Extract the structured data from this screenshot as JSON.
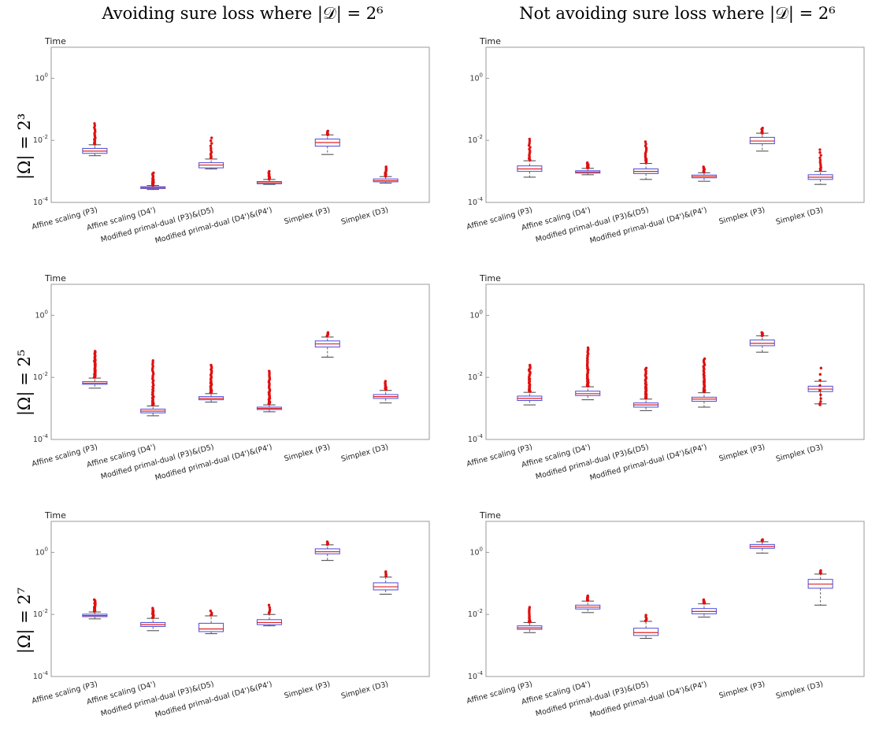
{
  "figure": {
    "column_titles": [
      "Avoiding sure loss where |𝒟| = 2⁶",
      "Not avoiding sure loss where |𝒟| = 2⁶"
    ],
    "row_labels": [
      "|Ω| = 2³",
      "|Ω| = 2⁵",
      "|Ω| = 2⁷"
    ]
  },
  "colors": {
    "box": "#4a4ad8",
    "median": "#e02020",
    "outlier": "#e01010",
    "whisker": "#666666"
  },
  "chart_data": [
    {
      "type": "box",
      "panel": "avoiding-omega-2^3",
      "ylabel": "Time",
      "yscale": "log",
      "ylim_exp": [
        -4,
        1
      ],
      "yticks": [
        {
          "base": "10",
          "exp": "0"
        },
        {
          "base": "10",
          "exp": "-2"
        },
        {
          "base": "10",
          "exp": "-4"
        }
      ],
      "categories": [
        "Affine scaling (P3)",
        "Affine scaling (D4')",
        "Modified primal-dual (P3)&(D5)",
        "Modified primal-dual (D4')&(P4')",
        "Simplex (P3)",
        "Simplex (D3)"
      ],
      "boxes": [
        {
          "min": 0.0032,
          "q1": 0.0038,
          "median": 0.0045,
          "q3": 0.0055,
          "max": 0.0072,
          "outliers_range": [
            0.0075,
            0.035
          ],
          "outliers_count": 16
        },
        {
          "min": 0.00026,
          "q1": 0.00028,
          "median": 0.0003,
          "q3": 0.00032,
          "max": 0.00035,
          "outliers_range": [
            0.00036,
            0.0009
          ],
          "outliers_count": 18
        },
        {
          "min": 0.0012,
          "q1": 0.0013,
          "median": 0.0016,
          "q3": 0.0019,
          "max": 0.0025,
          "outliers_range": [
            0.0027,
            0.012
          ],
          "outliers_count": 12
        },
        {
          "min": 0.00038,
          "q1": 0.0004,
          "median": 0.00043,
          "q3": 0.00047,
          "max": 0.00055,
          "outliers_range": [
            0.00056,
            0.001
          ],
          "outliers_count": 12
        },
        {
          "min": 0.0035,
          "q1": 0.0065,
          "median": 0.0085,
          "q3": 0.011,
          "max": 0.015,
          "outliers_range": [
            0.015,
            0.02
          ],
          "outliers_count": 8
        },
        {
          "min": 0.00042,
          "q1": 0.00046,
          "median": 0.0005,
          "q3": 0.00057,
          "max": 0.00068,
          "outliers_range": [
            0.0007,
            0.0014
          ],
          "outliers_count": 12
        }
      ]
    },
    {
      "type": "box",
      "panel": "not-avoiding-omega-2^3",
      "ylabel": "Time",
      "yscale": "log",
      "ylim_exp": [
        -4,
        1
      ],
      "yticks": [
        {
          "base": "10",
          "exp": "0"
        },
        {
          "base": "10",
          "exp": "-2"
        },
        {
          "base": "10",
          "exp": "-4"
        }
      ],
      "categories": [
        "Affine scaling (P3)",
        "Affine scaling (D4')",
        "Modified primal-dual (P3)&(D5)",
        "Modified primal-dual (D4')&(P4')",
        "Simplex (P3)",
        "Simplex (D3)"
      ],
      "boxes": [
        {
          "min": 0.00065,
          "q1": 0.001,
          "median": 0.0012,
          "q3": 0.0015,
          "max": 0.0022,
          "outliers_range": [
            0.0023,
            0.011
          ],
          "outliers_count": 16
        },
        {
          "min": 0.00078,
          "q1": 0.00088,
          "median": 0.00095,
          "q3": 0.00105,
          "max": 0.00125,
          "outliers_range": [
            0.0013,
            0.0019
          ],
          "outliers_count": 12
        },
        {
          "min": 0.00055,
          "q1": 0.00085,
          "median": 0.001,
          "q3": 0.0012,
          "max": 0.0018,
          "outliers_range": [
            0.0019,
            0.009
          ],
          "outliers_count": 16
        },
        {
          "min": 0.00048,
          "q1": 0.00062,
          "median": 0.00068,
          "q3": 0.00076,
          "max": 0.0009,
          "outliers_range": [
            0.00095,
            0.0014
          ],
          "outliers_count": 10
        },
        {
          "min": 0.0045,
          "q1": 0.0078,
          "median": 0.0095,
          "q3": 0.0125,
          "max": 0.017,
          "outliers_range": [
            0.017,
            0.025
          ],
          "outliers_count": 8
        },
        {
          "min": 0.00038,
          "q1": 0.00055,
          "median": 0.00065,
          "q3": 0.00078,
          "max": 0.001,
          "outliers_range": [
            0.0011,
            0.005
          ],
          "outliers_count": 12
        }
      ]
    },
    {
      "type": "box",
      "panel": "avoiding-omega-2^5",
      "ylabel": "Time",
      "yscale": "log",
      "ylim_exp": [
        -4,
        1
      ],
      "yticks": [
        {
          "base": "10",
          "exp": "0"
        },
        {
          "base": "10",
          "exp": "-2"
        },
        {
          "base": "10",
          "exp": "-4"
        }
      ],
      "categories": [
        "Affine scaling (P3)",
        "Affine scaling (D4')",
        "Modified primal-dual (P3)&(D5)",
        "Modified primal-dual (D4')&(P4')",
        "Simplex (P3)",
        "Simplex (D3)"
      ],
      "boxes": [
        {
          "min": 0.0045,
          "q1": 0.006,
          "median": 0.0065,
          "q3": 0.0073,
          "max": 0.0095,
          "outliers_range": [
            0.01,
            0.07
          ],
          "outliers_count": 40
        },
        {
          "min": 0.00058,
          "q1": 0.00072,
          "median": 0.00082,
          "q3": 0.00095,
          "max": 0.0012,
          "outliers_range": [
            0.0013,
            0.035
          ],
          "outliers_count": 36
        },
        {
          "min": 0.0016,
          "q1": 0.0019,
          "median": 0.0021,
          "q3": 0.0024,
          "max": 0.003,
          "outliers_range": [
            0.0032,
            0.025
          ],
          "outliers_count": 30
        },
        {
          "min": 0.00078,
          "q1": 0.00092,
          "median": 0.001,
          "q3": 0.0011,
          "max": 0.0013,
          "outliers_range": [
            0.0014,
            0.016
          ],
          "outliers_count": 32
        },
        {
          "min": 0.045,
          "q1": 0.095,
          "median": 0.12,
          "q3": 0.15,
          "max": 0.2,
          "outliers_range": [
            0.21,
            0.28
          ],
          "outliers_count": 6
        },
        {
          "min": 0.0015,
          "q1": 0.0021,
          "median": 0.0024,
          "q3": 0.0028,
          "max": 0.0038,
          "outliers_range": [
            0.004,
            0.0075
          ],
          "outliers_count": 10
        }
      ]
    },
    {
      "type": "box",
      "panel": "not-avoiding-omega-2^5",
      "ylabel": "Time",
      "yscale": "log",
      "ylim_exp": [
        -4,
        1
      ],
      "yticks": [
        {
          "base": "10",
          "exp": "0"
        },
        {
          "base": "10",
          "exp": "-2"
        },
        {
          "base": "10",
          "exp": "-4"
        }
      ],
      "categories": [
        "Affine scaling (P3)",
        "Affine scaling (D4')",
        "Modified primal-dual (P3)&(D5)",
        "Modified primal-dual (D4')&(P4')",
        "Simplex (P3)",
        "Simplex (D3)"
      ],
      "boxes": [
        {
          "min": 0.0013,
          "q1": 0.0018,
          "median": 0.0021,
          "q3": 0.0025,
          "max": 0.0033,
          "outliers_range": [
            0.0035,
            0.025
          ],
          "outliers_count": 36
        },
        {
          "min": 0.0019,
          "q1": 0.0026,
          "median": 0.003,
          "q3": 0.0036,
          "max": 0.005,
          "outliers_range": [
            0.0052,
            0.09
          ],
          "outliers_count": 40
        },
        {
          "min": 0.00085,
          "q1": 0.0011,
          "median": 0.0013,
          "q3": 0.0015,
          "max": 0.002,
          "outliers_range": [
            0.0021,
            0.02
          ],
          "outliers_count": 34
        },
        {
          "min": 0.0011,
          "q1": 0.0017,
          "median": 0.002,
          "q3": 0.0023,
          "max": 0.0032,
          "outliers_range": [
            0.0034,
            0.04
          ],
          "outliers_count": 34
        },
        {
          "min": 0.065,
          "q1": 0.105,
          "median": 0.125,
          "q3": 0.16,
          "max": 0.22,
          "outliers_range": [
            0.22,
            0.28
          ],
          "outliers_count": 6
        },
        {
          "min": 0.0014,
          "q1": 0.0035,
          "median": 0.0042,
          "q3": 0.0052,
          "max": 0.0075,
          "outliers_range": [
            0.0013,
            0.02
          ],
          "outliers_count": 10
        }
      ]
    },
    {
      "type": "box",
      "panel": "avoiding-omega-2^7",
      "ylabel": "Time",
      "yscale": "log",
      "ylim_exp": [
        -4,
        1
      ],
      "yticks": [
        {
          "base": "10",
          "exp": "0"
        },
        {
          "base": "10",
          "exp": "-2"
        },
        {
          "base": "10",
          "exp": "-4"
        }
      ],
      "categories": [
        "Affine scaling (P3)",
        "Affine scaling (D4')",
        "Modified primal-dual (P3)&(D5)",
        "Modified primal-dual (D4')&(P4')",
        "Simplex (P3)",
        "Simplex (D3)"
      ],
      "boxes": [
        {
          "min": 0.0072,
          "q1": 0.0085,
          "median": 0.0092,
          "q3": 0.0102,
          "max": 0.012,
          "outliers_range": [
            0.0125,
            0.03
          ],
          "outliers_count": 20
        },
        {
          "min": 0.003,
          "q1": 0.0041,
          "median": 0.0047,
          "q3": 0.0055,
          "max": 0.0075,
          "outliers_range": [
            0.0078,
            0.016
          ],
          "outliers_count": 16
        },
        {
          "min": 0.0024,
          "q1": 0.0028,
          "median": 0.0034,
          "q3": 0.0052,
          "max": 0.009,
          "outliers_range": [
            0.0095,
            0.013
          ],
          "outliers_count": 4
        },
        {
          "min": 0.0043,
          "q1": 0.0047,
          "median": 0.0055,
          "q3": 0.0068,
          "max": 0.01,
          "outliers_range": [
            0.011,
            0.02
          ],
          "outliers_count": 6
        },
        {
          "min": 0.55,
          "q1": 0.9,
          "median": 1.05,
          "q3": 1.3,
          "max": 1.75,
          "outliers_range": [
            1.8,
            2.2
          ],
          "outliers_count": 6
        },
        {
          "min": 0.045,
          "q1": 0.062,
          "median": 0.078,
          "q3": 0.105,
          "max": 0.16,
          "outliers_range": [
            0.17,
            0.24
          ],
          "outliers_count": 6
        }
      ]
    },
    {
      "type": "box",
      "panel": "not-avoiding-omega-2^7",
      "ylabel": "Time",
      "yscale": "log",
      "ylim_exp": [
        -4,
        1
      ],
      "yticks": [
        {
          "base": "10",
          "exp": "0"
        },
        {
          "base": "10",
          "exp": "-2"
        },
        {
          "base": "10",
          "exp": "-4"
        }
      ],
      "categories": [
        "Affine scaling (P3)",
        "Affine scaling (D4')",
        "Modified primal-dual (P3)&(D5)",
        "Modified primal-dual (D4')&(P4')",
        "Simplex (P3)",
        "Simplex (D3)"
      ],
      "boxes": [
        {
          "min": 0.0026,
          "q1": 0.0033,
          "median": 0.0037,
          "q3": 0.0043,
          "max": 0.0055,
          "outliers_range": [
            0.0057,
            0.017
          ],
          "outliers_count": 16
        },
        {
          "min": 0.0115,
          "q1": 0.015,
          "median": 0.0172,
          "q3": 0.02,
          "max": 0.027,
          "outliers_range": [
            0.028,
            0.04
          ],
          "outliers_count": 10
        },
        {
          "min": 0.0017,
          "q1": 0.0021,
          "median": 0.0026,
          "q3": 0.0036,
          "max": 0.006,
          "outliers_range": [
            0.0062,
            0.0095
          ],
          "outliers_count": 6
        },
        {
          "min": 0.0082,
          "q1": 0.0105,
          "median": 0.0125,
          "q3": 0.0155,
          "max": 0.022,
          "outliers_range": [
            0.023,
            0.03
          ],
          "outliers_count": 8
        },
        {
          "min": 0.95,
          "q1": 1.35,
          "median": 1.55,
          "q3": 1.8,
          "max": 2.2,
          "outliers_range": [
            2.3,
            2.6
          ],
          "outliers_count": 4
        },
        {
          "min": 0.02,
          "q1": 0.07,
          "median": 0.095,
          "q3": 0.135,
          "max": 0.2,
          "outliers_range": [
            0.21,
            0.26
          ],
          "outliers_count": 6
        }
      ]
    }
  ]
}
